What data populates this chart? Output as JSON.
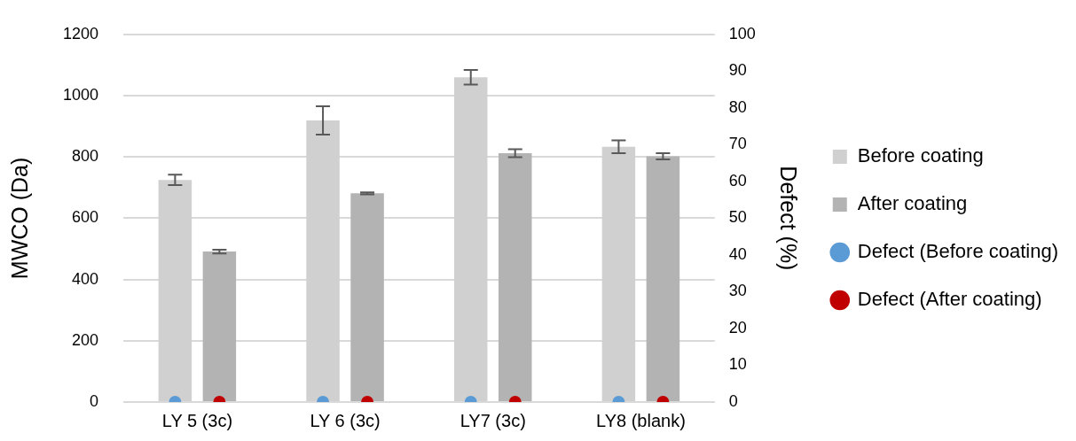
{
  "chart_data": {
    "type": "bar",
    "ylabel": "MWCO (Da)",
    "y2label": "Defect (%)",
    "categories": [
      "LY 5 (3c)",
      "LY 6 (3c)",
      "LY7 (3c)",
      "LY8 (blank)"
    ],
    "series": [
      {
        "name": "Before coating",
        "color": "#d0d0d0",
        "values": [
          725,
          919,
          1060,
          833
        ],
        "errors": [
          17,
          46,
          24,
          21
        ]
      },
      {
        "name": "After coating",
        "color": "#b3b3b3",
        "values": [
          491,
          681,
          812,
          802
        ],
        "errors": [
          6,
          3,
          13,
          10
        ]
      },
      {
        "name": "Defect (Before coating)",
        "type": "scatter",
        "axis": "y2",
        "color": "#5b9bd5",
        "x": [
          "LY 5 (3c)",
          "LY 6 (3c)",
          "LY7 (3c)",
          "LY8 (blank)"
        ],
        "values": [
          0,
          0,
          0,
          0
        ]
      },
      {
        "name": "Defect (After coating)",
        "type": "scatter",
        "axis": "y2",
        "color": "#c00000",
        "x": [
          "LY 5 (3c)",
          "LY 6 (3c)",
          "LY7 (3c)",
          "LY8 (blank)"
        ],
        "values": [
          0,
          0,
          0,
          0
        ]
      }
    ],
    "ylim": [
      0,
      1200
    ],
    "yticks": [
      0,
      200,
      400,
      600,
      800,
      1000,
      1200
    ],
    "y2lim": [
      0,
      100
    ],
    "y2ticks": [
      0,
      10,
      20,
      30,
      40,
      50,
      60,
      70,
      80,
      90,
      100
    ],
    "grid": "y",
    "legend": "right",
    "marker": "circle"
  }
}
